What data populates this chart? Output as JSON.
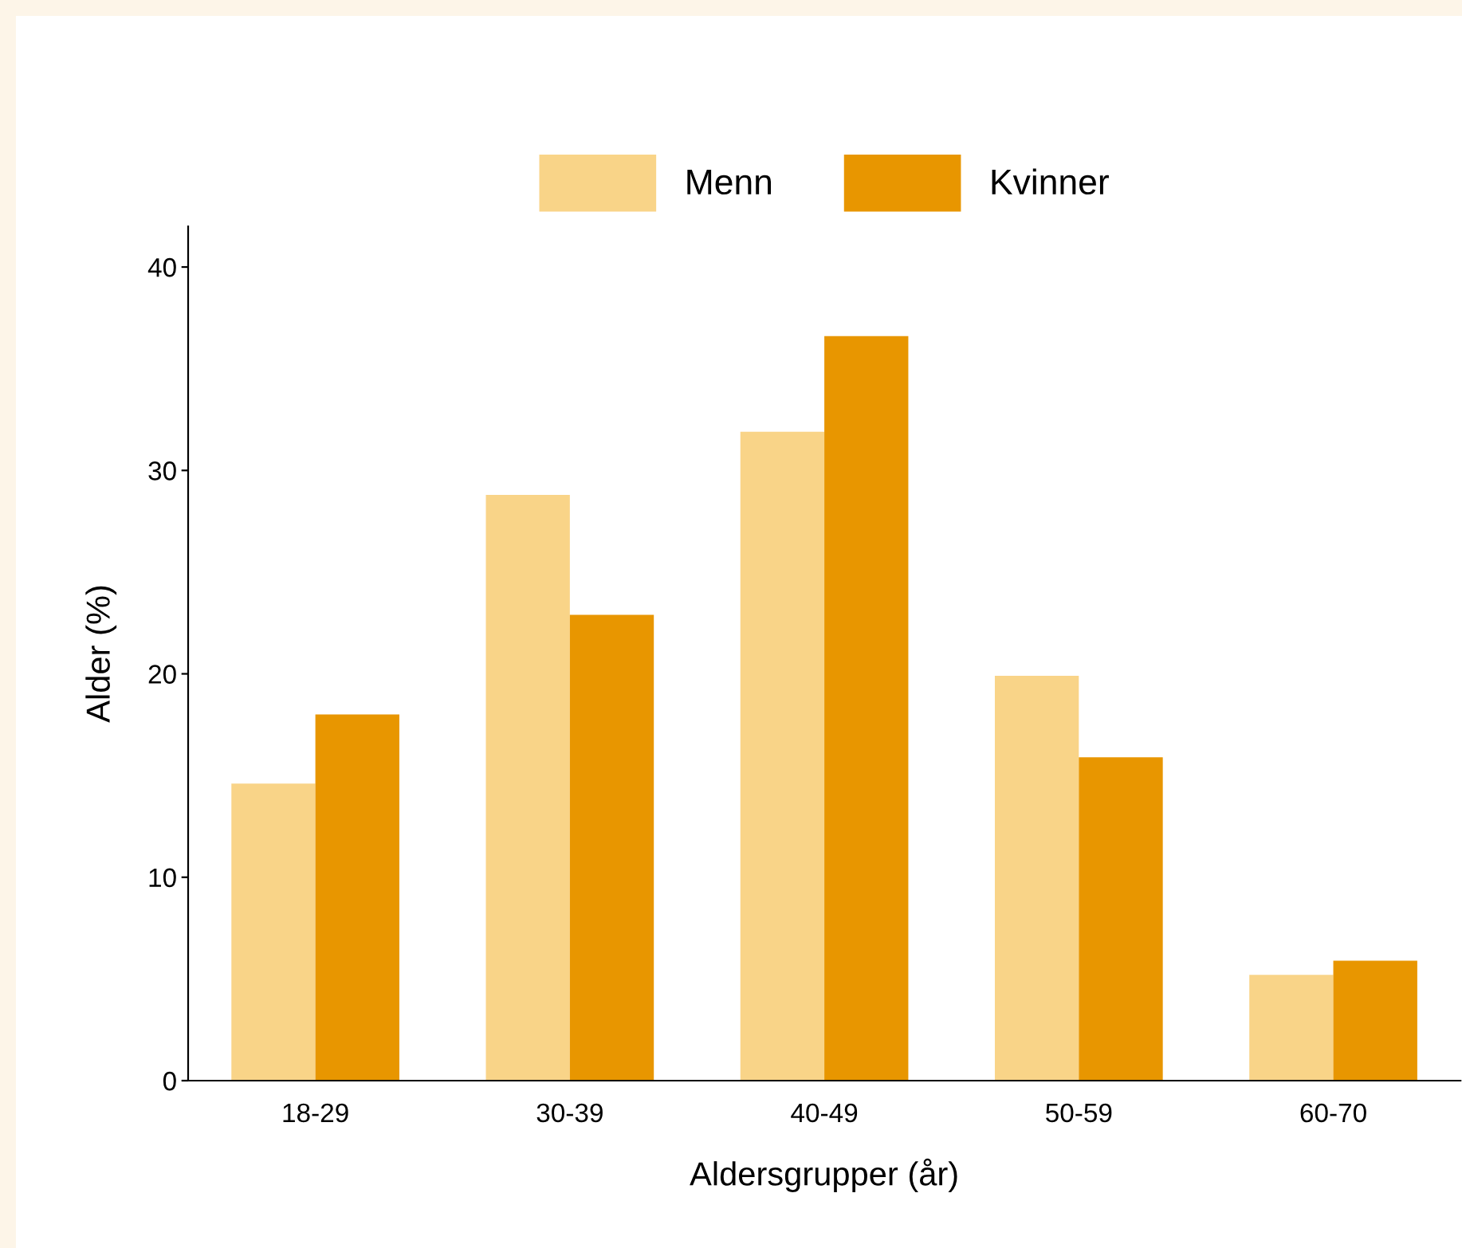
{
  "chart_data": {
    "type": "bar",
    "xlabel": "Aldersgrupper (år)",
    "ylabel": "Alder (%)",
    "categories": [
      "18-29",
      "30-39",
      "40-49",
      "50-59",
      "60-70"
    ],
    "series": [
      {
        "name": "Menn",
        "color": "#f9d488",
        "values": [
          14.6,
          28.8,
          31.9,
          19.9,
          5.2
        ]
      },
      {
        "name": "Kvinner",
        "color": "#e89600",
        "values": [
          18.0,
          22.9,
          36.6,
          15.9,
          5.9
        ]
      }
    ],
    "ylim": [
      0,
      42
    ],
    "yticks": [
      0,
      10,
      20,
      30,
      40
    ],
    "grid": false,
    "legend": "top"
  }
}
